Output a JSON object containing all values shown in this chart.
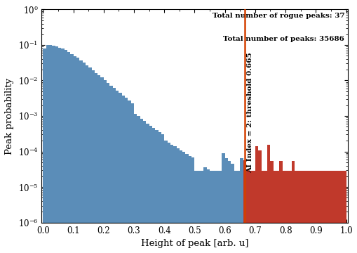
{
  "total_peaks": 35686,
  "rogue_peaks": 37,
  "threshold": 0.665,
  "threshold_label": "AI Index = 2: threshold 0.665",
  "xlabel": "Height of peak [arb. u]",
  "ylabel": "Peak probability",
  "annotation_rogue": "Total number of rogue peaks: 37",
  "annotation_total": "Total number of peaks: 35686",
  "bar_width": 0.01,
  "xlim": [
    -0.005,
    1.005
  ],
  "blue_color": "#5b8db8",
  "red_color": "#c0392b",
  "vline_color": "#d44000",
  "bar_centers": [
    0.005,
    0.015,
    0.025,
    0.035,
    0.045,
    0.055,
    0.065,
    0.075,
    0.085,
    0.095,
    0.105,
    0.115,
    0.125,
    0.135,
    0.145,
    0.155,
    0.165,
    0.175,
    0.185,
    0.195,
    0.205,
    0.215,
    0.225,
    0.235,
    0.245,
    0.255,
    0.265,
    0.275,
    0.285,
    0.295,
    0.305,
    0.315,
    0.325,
    0.335,
    0.345,
    0.355,
    0.365,
    0.375,
    0.385,
    0.395,
    0.405,
    0.415,
    0.425,
    0.435,
    0.445,
    0.455,
    0.465,
    0.475,
    0.485,
    0.495,
    0.505,
    0.515,
    0.525,
    0.535,
    0.545,
    0.555,
    0.565,
    0.575,
    0.585,
    0.595,
    0.605,
    0.615,
    0.625,
    0.635,
    0.645,
    0.655,
    0.665,
    0.675,
    0.685,
    0.695,
    0.705,
    0.715,
    0.725,
    0.735,
    0.745,
    0.755,
    0.765,
    0.775,
    0.785,
    0.795,
    0.805,
    0.815,
    0.825,
    0.835,
    0.845,
    0.855,
    0.865,
    0.875,
    0.885,
    0.895,
    0.905,
    0.915,
    0.925,
    0.935,
    0.945,
    0.955,
    0.965,
    0.975,
    0.985,
    0.995
  ],
  "bar_values": [
    0.079,
    0.1,
    0.098,
    0.094,
    0.09,
    0.085,
    0.078,
    0.071,
    0.063,
    0.056,
    0.049,
    0.043,
    0.037,
    0.032,
    0.027,
    0.023,
    0.019,
    0.016,
    0.014,
    0.012,
    0.01,
    0.0085,
    0.0072,
    0.0061,
    0.0052,
    0.0044,
    0.0037,
    0.0032,
    0.0027,
    0.0023,
    0.00115,
    0.00098,
    0.00083,
    0.00072,
    0.00062,
    0.00053,
    0.00046,
    0.0004,
    0.00035,
    0.0003,
    0.0002,
    0.000175,
    0.000155,
    0.000138,
    0.000122,
    0.000108,
    9.6e-05,
    8.6e-05,
    7.6e-05,
    6.8e-05,
    2.8e-05,
    2.8e-05,
    2.8e-05,
    3.6e-05,
    3.2e-05,
    2.8e-05,
    2.8e-05,
    2.8e-05,
    2.8e-05,
    9e-05,
    6.5e-05,
    5.5e-05,
    4.5e-05,
    2.8e-05,
    2.8e-05,
    6.5e-05,
    5.6e-05,
    3.2e-05,
    2.8e-05,
    2.8e-05,
    0.00014,
    0.000105,
    2.8e-05,
    2.8e-05,
    0.000155,
    5.5e-05,
    2.8e-05,
    2.8e-05,
    5.5e-05,
    2.8e-05,
    2.8e-05,
    2.8e-05,
    5.5e-05,
    2.8e-05,
    2.8e-05,
    2.8e-05,
    2.8e-05,
    2.8e-05,
    2.8e-05,
    2.8e-05,
    2.8e-05,
    2.8e-05,
    2.8e-05,
    2.8e-05,
    2.8e-05,
    2.8e-05,
    2.8e-05,
    2.8e-05,
    2.8e-05,
    2.8e-05
  ]
}
